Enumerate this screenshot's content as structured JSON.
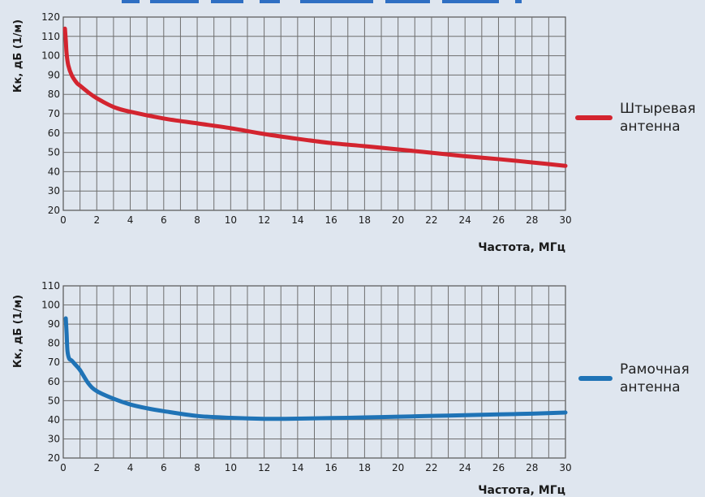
{
  "chart_data": [
    {
      "type": "line",
      "xlabel": "Частота, МГц",
      "ylabel": "Кк, дБ (1/м)",
      "xlim": [
        0,
        30
      ],
      "ylim": [
        20,
        120
      ],
      "xticks": [
        0,
        2,
        4,
        6,
        8,
        10,
        12,
        14,
        16,
        18,
        20,
        22,
        24,
        26,
        28,
        30
      ],
      "yticks": [
        20,
        30,
        40,
        50,
        60,
        70,
        80,
        90,
        100,
        110,
        120
      ],
      "grid": true,
      "legend_position": "right",
      "series": [
        {
          "name": "Штыревая антенна",
          "color": "#d3242f",
          "x": [
            0.1,
            0.15,
            0.2,
            0.3,
            0.5,
            0.8,
            1,
            1.5,
            2,
            3,
            4,
            6,
            8,
            10,
            12,
            14,
            16,
            18,
            20,
            22,
            24,
            26,
            28,
            30
          ],
          "y": [
            114,
            108,
            101,
            95,
            90,
            86,
            84.5,
            81,
            78,
            73.5,
            71,
            67.5,
            65,
            62.5,
            59.5,
            57,
            54.8,
            53.2,
            51.5,
            49.8,
            48,
            46.5,
            44.8,
            43
          ]
        }
      ]
    },
    {
      "type": "line",
      "xlabel": "Частота, МГц",
      "ylabel": "Кк, дБ (1/м)",
      "xlim": [
        0,
        30
      ],
      "ylim": [
        20,
        110
      ],
      "xticks": [
        0,
        2,
        4,
        6,
        8,
        10,
        12,
        14,
        16,
        18,
        20,
        22,
        24,
        26,
        28,
        30
      ],
      "yticks": [
        20,
        30,
        40,
        50,
        60,
        70,
        80,
        90,
        100,
        110
      ],
      "grid": true,
      "legend_position": "right",
      "series": [
        {
          "name": "Рамочная антенна",
          "color": "#1f73b6",
          "x": [
            0.15,
            0.2,
            0.25,
            0.35,
            0.5,
            0.7,
            1,
            1.5,
            2,
            3,
            4,
            5,
            6,
            8,
            10,
            12,
            14,
            16,
            18,
            20,
            22,
            24,
            26,
            28,
            30
          ],
          "y": [
            93,
            85,
            76,
            72,
            71,
            69,
            66,
            59,
            55,
            51,
            48,
            46,
            44.5,
            42,
            41,
            40.5,
            40.6,
            40.9,
            41.2,
            41.6,
            42,
            42.4,
            42.8,
            43.2,
            43.8
          ]
        }
      ]
    }
  ],
  "charts": [
    {
      "ylabel": "Кк, дБ (1/м)",
      "xlabel": "Частота, МГц",
      "legend": {
        "line1": "Штыревая",
        "line2": "антенна"
      }
    },
    {
      "ylabel": "Кк, дБ (1/м)",
      "xlabel": "Частота, МГц",
      "legend": {
        "line1": "Рамочная",
        "line2": "антенна"
      }
    }
  ],
  "colors": {
    "background": "#dfe6ef",
    "header_accent": "#2f6fc3"
  }
}
